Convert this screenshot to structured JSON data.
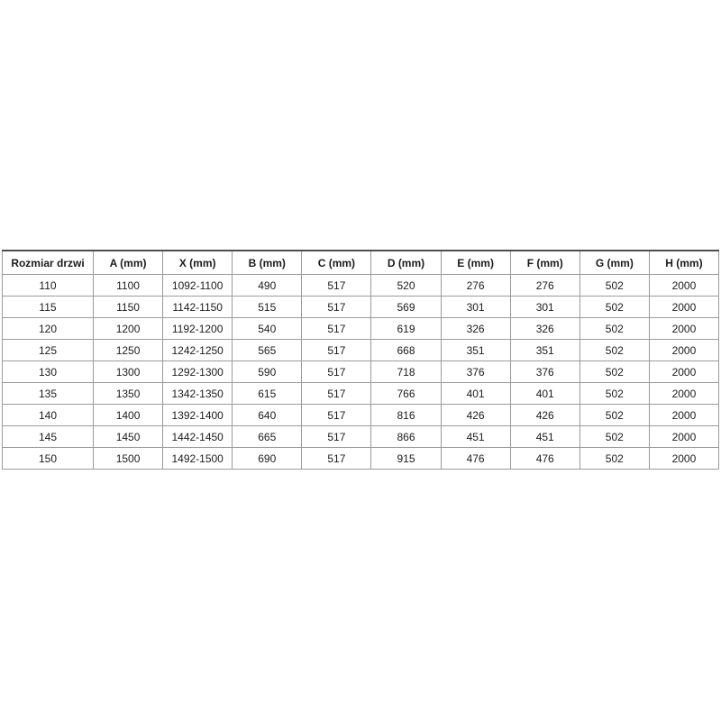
{
  "table": {
    "title": "door-size-dimensions",
    "grid_color": "#9b9b9b",
    "top_border_color": "#4d4d4d",
    "text_color": "#1b1b1b",
    "headers": [
      "Rozmiar drzwi",
      "A (mm)",
      "X (mm)",
      "B (mm)",
      "C (mm)",
      "D (mm)",
      "E (mm)",
      "F (mm)",
      "G (mm)",
      "H (mm)"
    ],
    "rows": [
      [
        "110",
        "1100",
        "1092-1100",
        "490",
        "517",
        "520",
        "276",
        "276",
        "502",
        "2000"
      ],
      [
        "115",
        "1150",
        "1142-1150",
        "515",
        "517",
        "569",
        "301",
        "301",
        "502",
        "2000"
      ],
      [
        "120",
        "1200",
        "1192-1200",
        "540",
        "517",
        "619",
        "326",
        "326",
        "502",
        "2000"
      ],
      [
        "125",
        "1250",
        "1242-1250",
        "565",
        "517",
        "668",
        "351",
        "351",
        "502",
        "2000"
      ],
      [
        "130",
        "1300",
        "1292-1300",
        "590",
        "517",
        "718",
        "376",
        "376",
        "502",
        "2000"
      ],
      [
        "135",
        "1350",
        "1342-1350",
        "615",
        "517",
        "766",
        "401",
        "401",
        "502",
        "2000"
      ],
      [
        "140",
        "1400",
        "1392-1400",
        "640",
        "517",
        "816",
        "426",
        "426",
        "502",
        "2000"
      ],
      [
        "145",
        "1450",
        "1442-1450",
        "665",
        "517",
        "866",
        "451",
        "451",
        "502",
        "2000"
      ],
      [
        "150",
        "1500",
        "1492-1500",
        "690",
        "517",
        "915",
        "476",
        "476",
        "502",
        "2000"
      ]
    ]
  }
}
